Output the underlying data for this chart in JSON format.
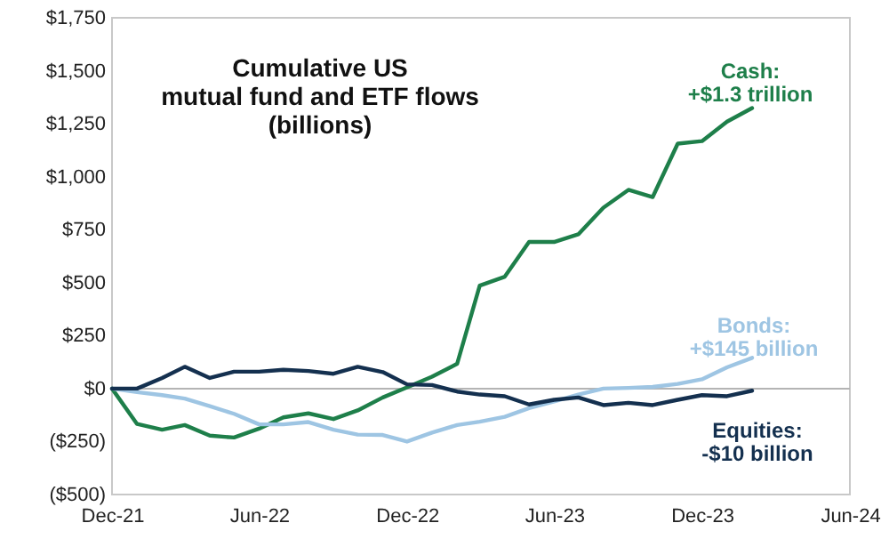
{
  "chart_data": {
    "type": "line",
    "title": "Cumulative US\nmutual fund and ETF flows\n(billions)",
    "x": [
      "2021-12",
      "2022-01",
      "2022-02",
      "2022-03",
      "2022-04",
      "2022-05",
      "2022-06",
      "2022-07",
      "2022-08",
      "2022-09",
      "2022-10",
      "2022-11",
      "2022-12",
      "2023-01",
      "2023-02",
      "2023-03",
      "2023-04",
      "2023-05",
      "2023-06",
      "2023-07",
      "2023-08",
      "2023-09",
      "2023-10",
      "2023-11",
      "2023-12",
      "2024-01",
      "2024-02"
    ],
    "series": [
      {
        "name": "Cash:",
        "color": "#1e7f4a",
        "values": [
          0,
          -167,
          -194,
          -172,
          -222,
          -231,
          -189,
          -136,
          -117,
          -144,
          -103,
          -42,
          6,
          56,
          117,
          486,
          528,
          692,
          692,
          728,
          854,
          938,
          904,
          1156,
          1168,
          1260,
          1324
        ]
      },
      {
        "name": "Bonds:",
        "color": "#9ec5e3",
        "values": [
          0,
          -17,
          -31,
          -47,
          -83,
          -119,
          -169,
          -169,
          -158,
          -194,
          -217,
          -219,
          -250,
          -208,
          -172,
          -156,
          -133,
          -92,
          -61,
          -28,
          0,
          3,
          8,
          22,
          44,
          100,
          145
        ]
      },
      {
        "name": "Equities:",
        "color": "#14304f",
        "values": [
          0,
          0,
          50,
          103,
          50,
          80,
          80,
          89,
          83,
          70,
          103,
          78,
          20,
          17,
          -14,
          -28,
          -36,
          -75,
          -53,
          -42,
          -78,
          -67,
          -78,
          -53,
          -31,
          -36,
          -10
        ]
      }
    ],
    "annotations": [
      "+$1.3 trillion",
      "+$145 billion",
      "-$10 billion"
    ],
    "xlim": [
      "2021-12",
      "2024-06"
    ],
    "xticks": [
      {
        "value": "2021-12",
        "label": "Dec-21"
      },
      {
        "value": "2022-06",
        "label": "Jun-22"
      },
      {
        "value": "2022-12",
        "label": "Dec-22"
      },
      {
        "value": "2023-06",
        "label": "Jun-23"
      },
      {
        "value": "2023-12",
        "label": "Dec-23"
      },
      {
        "value": "2024-06",
        "label": "Jun-24"
      }
    ],
    "ylim": [
      -500,
      1750
    ],
    "yticks": [
      {
        "value": -500,
        "label": "($500)"
      },
      {
        "value": -250,
        "label": "($250)"
      },
      {
        "value": 0,
        "label": "$0"
      },
      {
        "value": 250,
        "label": "$250"
      },
      {
        "value": 500,
        "label": "$500"
      },
      {
        "value": 750,
        "label": "$750"
      },
      {
        "value": 1000,
        "label": "$1,000"
      },
      {
        "value": 1250,
        "label": "$1,250"
      },
      {
        "value": 1500,
        "label": "$1,500"
      },
      {
        "value": 1750,
        "label": "$1,750"
      }
    ],
    "ref_lines": [
      {
        "axis": "y",
        "value": 0,
        "color": "#b4b4b4"
      }
    ],
    "grid": false,
    "marker": "none",
    "line_style": "solid"
  }
}
